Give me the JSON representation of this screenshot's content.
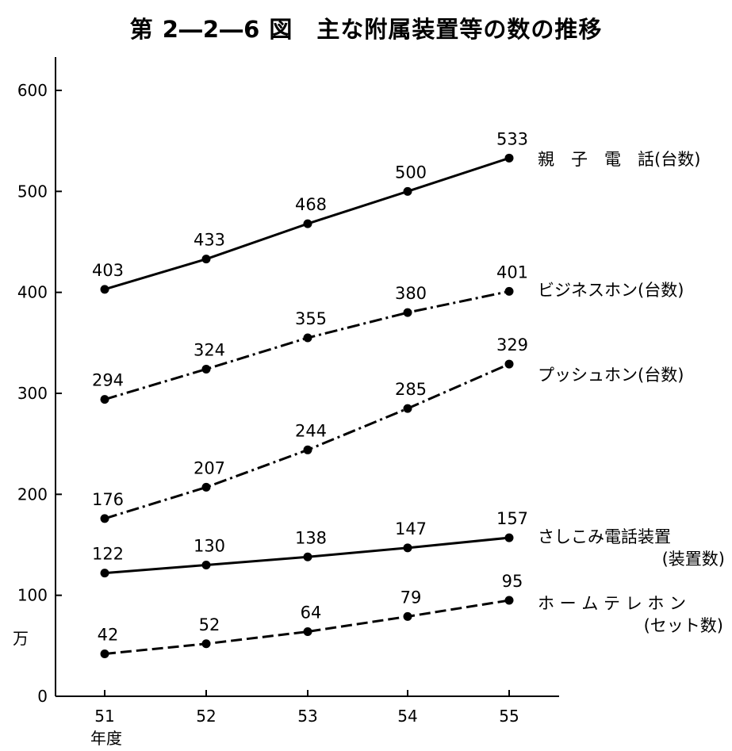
{
  "title": "第 2―2―6 図　主な附属装置等の数の推移",
  "chart_data": {
    "type": "line",
    "title": "第 2―2―6 図　主な附属装置等の数の推移",
    "x": [
      "51",
      "52",
      "53",
      "54",
      "55"
    ],
    "xlabel": "年度",
    "ylabel": "万",
    "ylim": [
      0,
      600
    ],
    "yticks": [
      "0",
      "100",
      "200",
      "300",
      "400",
      "500",
      "600"
    ],
    "grid": false,
    "series": [
      {
        "name": "親 子 電 話(台数)",
        "label_lines": [
          "親　子　電　話(台数)"
        ],
        "dash": "solid",
        "values": [
          403,
          433,
          468,
          500,
          533
        ]
      },
      {
        "name": "ビジネスホン(台数)",
        "label_lines": [
          "ビジネスホン(台数)"
        ],
        "dash": "dashdot",
        "values": [
          294,
          324,
          355,
          380,
          401
        ]
      },
      {
        "name": "プッシュホン(台数)",
        "label_lines": [
          "プッシュホン(台数)"
        ],
        "dash": "dashdot",
        "values": [
          176,
          207,
          244,
          285,
          329
        ]
      },
      {
        "name": "さしこみ電話装置(装置数)",
        "label_lines": [
          "さしこみ電話装置",
          "(装置数)"
        ],
        "dash": "solid",
        "values": [
          122,
          130,
          138,
          147,
          157
        ]
      },
      {
        "name": "ホームテレホン(セット数)",
        "label_lines": [
          "ホ ー ム テ レ ホ ン",
          "(セット数)"
        ],
        "dash": "dashed",
        "values": [
          42,
          52,
          64,
          79,
          95
        ]
      }
    ]
  }
}
